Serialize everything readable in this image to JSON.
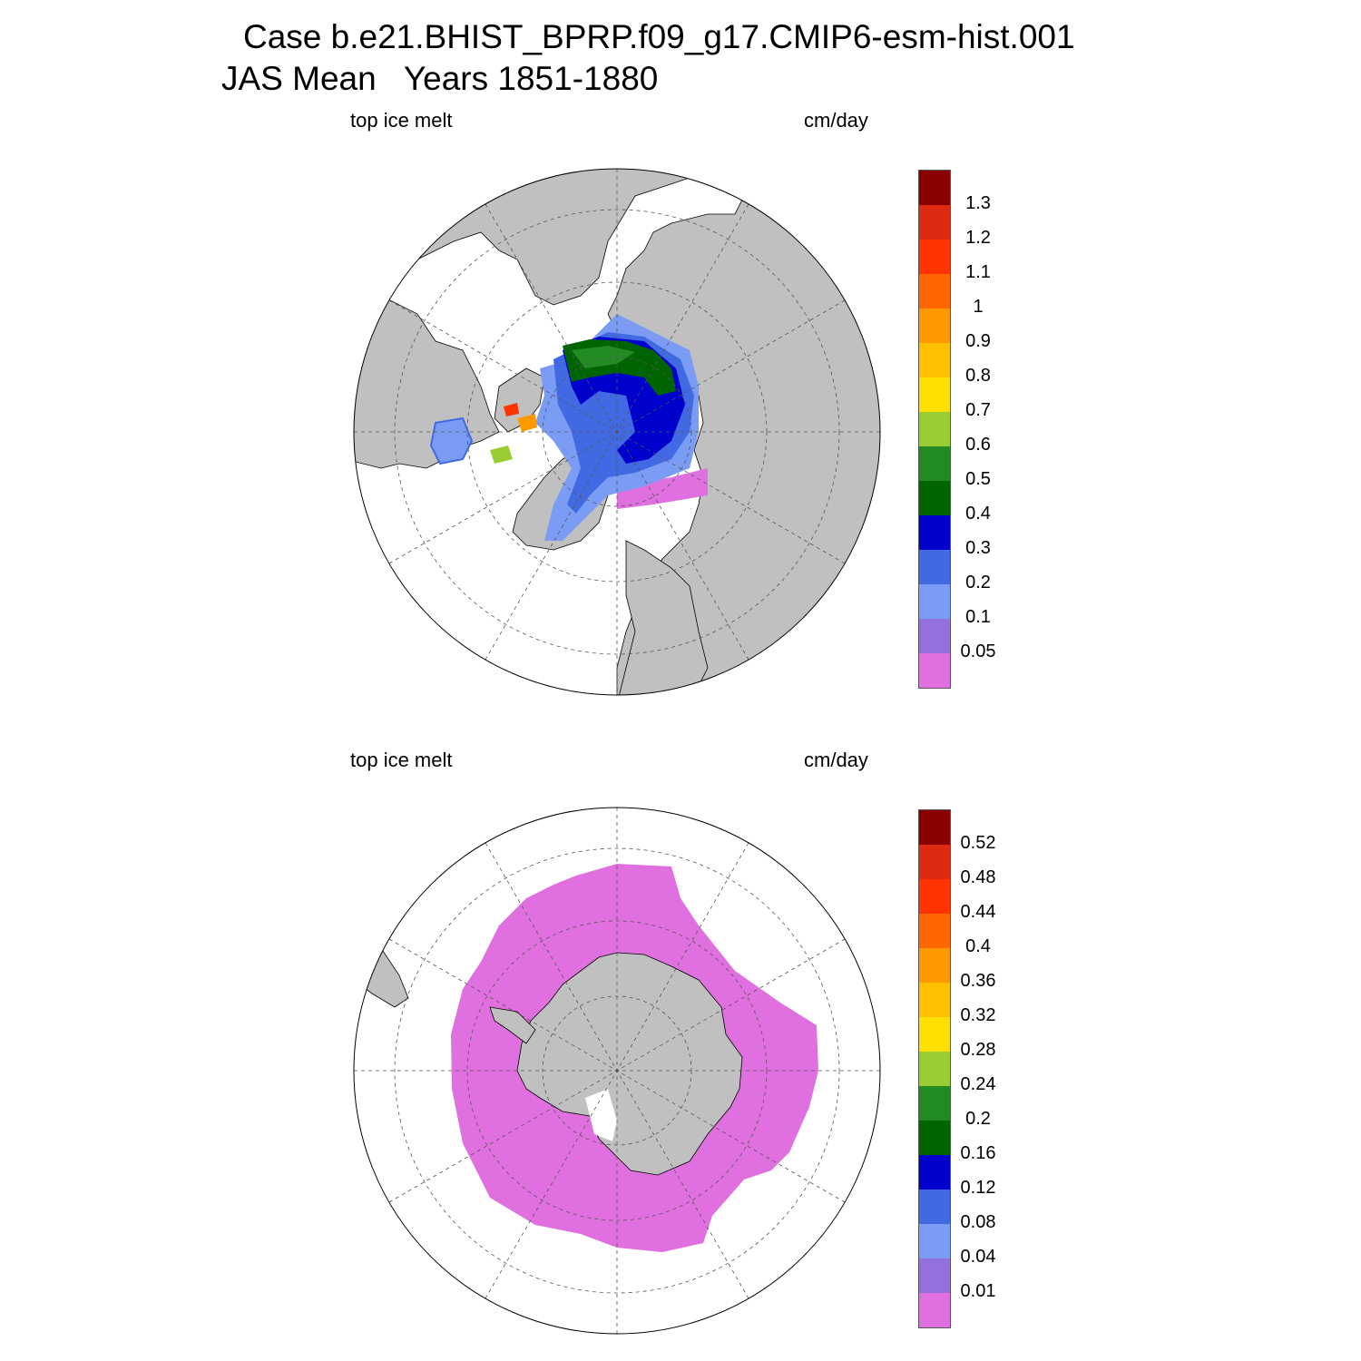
{
  "title": {
    "line1": "Case b.e21.BHIST_BPRP.f09_g17.CMIP6-esm-hist.001",
    "line2": "JAS Mean   Years 1851-1880"
  },
  "panels": [
    {
      "id": "north",
      "hemisphere": "Northern",
      "left_label": "top ice melt",
      "right_label": "cm/day",
      "colorbar": {
        "colors": [
          "#e070e0",
          "#9370db",
          "#7b9cf5",
          "#4169e1",
          "#0000cd",
          "#006400",
          "#228b22",
          "#9acd32",
          "#ffe000",
          "#ffc000",
          "#ff9900",
          "#ff6600",
          "#ff3300",
          "#dd2a10",
          "#8b0000"
        ],
        "levels": [
          "0.05",
          "0.1",
          "0.2",
          "0.3",
          "0.4",
          "0.5",
          "0.6",
          "0.7",
          "0.8",
          "0.9",
          "1",
          "1.1",
          "1.2",
          "1.3"
        ]
      }
    },
    {
      "id": "south",
      "hemisphere": "Southern",
      "left_label": "top ice melt",
      "right_label": "cm/day",
      "colorbar": {
        "colors": [
          "#e070e0",
          "#9370db",
          "#7b9cf5",
          "#4169e1",
          "#0000cd",
          "#006400",
          "#228b22",
          "#9acd32",
          "#ffe000",
          "#ffc000",
          "#ff9900",
          "#ff6600",
          "#ff3300",
          "#dd2a10",
          "#8b0000"
        ],
        "levels": [
          "0.01",
          "0.04",
          "0.08",
          "0.12",
          "0.16",
          "0.2",
          "0.24",
          "0.28",
          "0.32",
          "0.36",
          "0.4",
          "0.44",
          "0.48",
          "0.52"
        ]
      }
    }
  ],
  "colors": {
    "land": "#c0c0c0",
    "ocean": "#ffffff",
    "grid": "#555555"
  }
}
